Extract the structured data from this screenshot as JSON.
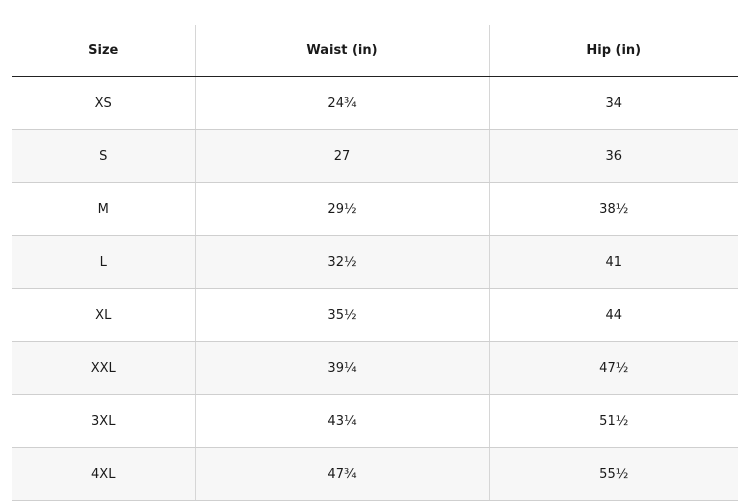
{
  "table": {
    "header": [
      "Size",
      "Waist (in)",
      "Hip (in)"
    ],
    "rows": [
      [
        "XS",
        "24¾",
        "34"
      ],
      [
        "S",
        "27",
        "36"
      ],
      [
        "M",
        "29½",
        "38½"
      ],
      [
        "L",
        "32½",
        "41"
      ],
      [
        "XL",
        "35½",
        "44"
      ],
      [
        "XXL",
        "39¼",
        "47½"
      ],
      [
        "3XL",
        "43¼",
        "51½"
      ],
      [
        "4XL",
        "47¾",
        "55½"
      ]
    ]
  }
}
